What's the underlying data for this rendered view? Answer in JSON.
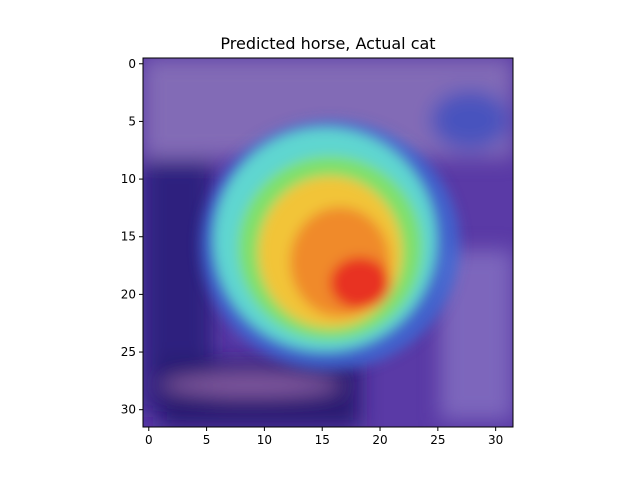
{
  "chart_data": {
    "type": "heatmap",
    "title": "Predicted horse, Actual cat",
    "xlabel": "",
    "ylabel": "",
    "xlim": [
      -0.5,
      31.5
    ],
    "ylim": [
      31.5,
      -0.5
    ],
    "y_inverted": true,
    "grid": false,
    "xticks": [
      0,
      5,
      10,
      15,
      20,
      25,
      30
    ],
    "yticks": [
      0,
      5,
      10,
      15,
      20,
      25,
      30
    ],
    "image_shape": [
      32,
      32
    ],
    "colormap": "jet overlay on image",
    "colors": {
      "background_purple": "#5a3aa6",
      "deep_blue": "#2a1f7a",
      "cyan": "#5fd6d0",
      "green": "#7ee06a",
      "yellow": "#f2c437",
      "orange": "#f08a2c",
      "red": "#e83322"
    },
    "hotspot": {
      "peak": {
        "x": 19,
        "y": 19
      },
      "region_x": [
        8,
        25
      ],
      "region_y": [
        8,
        25
      ]
    }
  }
}
